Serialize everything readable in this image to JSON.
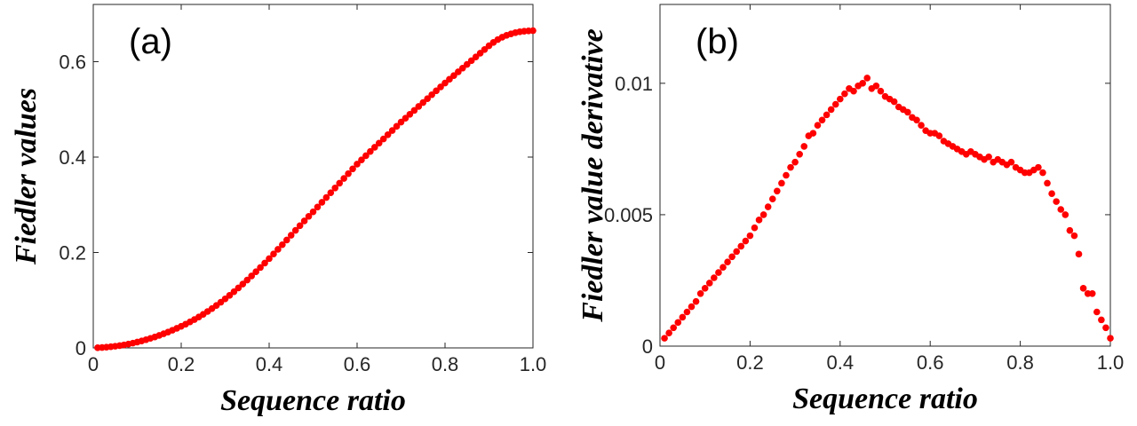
{
  "chart_data": [
    {
      "type": "scatter",
      "annotation": "(a)",
      "xlabel": "Sequence ratio",
      "ylabel": "Fiedler values",
      "color": "#ff0000",
      "xlim": [
        0,
        1
      ],
      "xticks": [
        0,
        0.2,
        0.4,
        0.6,
        0.8,
        {
          "value": 1,
          "label": "1.0"
        }
      ],
      "ylim": [
        0,
        0.72
      ],
      "yticks": [
        0,
        0.2,
        0.4,
        0.6
      ],
      "x": [
        0.01,
        0.02,
        0.03,
        0.04,
        0.05,
        0.06,
        0.07,
        0.08,
        0.09,
        0.1,
        0.11,
        0.12,
        0.13,
        0.14,
        0.15,
        0.16,
        0.17,
        0.18,
        0.19,
        0.2,
        0.21,
        0.22,
        0.23,
        0.24,
        0.25,
        0.26,
        0.27,
        0.28,
        0.29,
        0.3,
        0.31,
        0.32,
        0.33,
        0.34,
        0.35,
        0.36,
        0.37,
        0.38,
        0.39,
        0.4,
        0.41,
        0.42,
        0.43,
        0.44,
        0.45,
        0.46,
        0.47,
        0.48,
        0.49,
        0.5,
        0.51,
        0.52,
        0.53,
        0.54,
        0.55,
        0.56,
        0.57,
        0.58,
        0.59,
        0.6,
        0.61,
        0.62,
        0.63,
        0.64,
        0.65,
        0.66,
        0.67,
        0.68,
        0.69,
        0.7,
        0.71,
        0.72,
        0.73,
        0.74,
        0.75,
        0.76,
        0.77,
        0.78,
        0.79,
        0.8,
        0.81,
        0.82,
        0.83,
        0.84,
        0.85,
        0.86,
        0.87,
        0.88,
        0.89,
        0.9,
        0.91,
        0.92,
        0.93,
        0.94,
        0.95,
        0.96,
        0.97,
        0.98,
        0.99,
        1.0
      ],
      "values": [
        0.0003,
        0.0008,
        0.0015,
        0.0024,
        0.0035,
        0.0048,
        0.0063,
        0.008,
        0.01,
        0.0122,
        0.0146,
        0.0172,
        0.02,
        0.023,
        0.0262,
        0.0296,
        0.0332,
        0.037,
        0.041,
        0.0452,
        0.0497,
        0.0545,
        0.0595,
        0.0648,
        0.0704,
        0.0763,
        0.0825,
        0.089,
        0.0958,
        0.1028,
        0.1101,
        0.1177,
        0.1257,
        0.1338,
        0.1422,
        0.1508,
        0.1596,
        0.1686,
        0.1778,
        0.1872,
        0.1968,
        0.2066,
        0.2163,
        0.2262,
        0.2362,
        0.2464,
        0.2562,
        0.2661,
        0.2758,
        0.2853,
        0.2953,
        0.3053,
        0.3153,
        0.3253,
        0.3353,
        0.3453,
        0.3553,
        0.3653,
        0.3753,
        0.3853,
        0.3941,
        0.4029,
        0.4117,
        0.4205,
        0.4293,
        0.4381,
        0.4469,
        0.4557,
        0.4645,
        0.4733,
        0.4815,
        0.4897,
        0.4979,
        0.5061,
        0.5143,
        0.5225,
        0.5307,
        0.5389,
        0.5471,
        0.5553,
        0.5631,
        0.5709,
        0.5787,
        0.5865,
        0.5943,
        0.6021,
        0.6099,
        0.6177,
        0.6255,
        0.6333,
        0.6403,
        0.6463,
        0.6513,
        0.6553,
        0.6583,
        0.6608,
        0.6626,
        0.6638,
        0.6646,
        0.6651
      ]
    },
    {
      "type": "scatter",
      "annotation": "(b)",
      "xlabel": "Sequence ratio",
      "ylabel": "Fiedler value derivative",
      "color": "#ff0000",
      "xlim": [
        0,
        1
      ],
      "xticks": [
        0,
        0.2,
        0.4,
        0.6,
        0.8,
        {
          "value": 1,
          "label": "1.0"
        }
      ],
      "ylim": [
        0,
        0.013
      ],
      "yticks": [
        0,
        0.005,
        0.01
      ],
      "x": [
        0.01,
        0.02,
        0.03,
        0.04,
        0.05,
        0.06,
        0.07,
        0.08,
        0.09,
        0.1,
        0.11,
        0.12,
        0.13,
        0.14,
        0.15,
        0.16,
        0.17,
        0.18,
        0.19,
        0.2,
        0.21,
        0.22,
        0.23,
        0.24,
        0.25,
        0.26,
        0.27,
        0.28,
        0.29,
        0.3,
        0.31,
        0.32,
        0.33,
        0.34,
        0.35,
        0.36,
        0.37,
        0.38,
        0.39,
        0.4,
        0.41,
        0.42,
        0.43,
        0.44,
        0.45,
        0.46,
        0.47,
        0.48,
        0.49,
        0.5,
        0.51,
        0.52,
        0.53,
        0.54,
        0.55,
        0.56,
        0.57,
        0.58,
        0.59,
        0.6,
        0.61,
        0.62,
        0.63,
        0.64,
        0.65,
        0.66,
        0.67,
        0.68,
        0.69,
        0.7,
        0.71,
        0.72,
        0.73,
        0.74,
        0.75,
        0.76,
        0.77,
        0.78,
        0.79,
        0.8,
        0.81,
        0.82,
        0.83,
        0.84,
        0.85,
        0.86,
        0.87,
        0.88,
        0.89,
        0.9,
        0.91,
        0.92,
        0.93,
        0.94,
        0.95,
        0.96,
        0.97,
        0.98,
        0.99,
        1.0
      ],
      "values": [
        0.0003,
        0.0005,
        0.0007,
        0.0009,
        0.0011,
        0.0013,
        0.0015,
        0.0017,
        0.002,
        0.0022,
        0.0024,
        0.0026,
        0.0028,
        0.003,
        0.0032,
        0.0034,
        0.0036,
        0.0038,
        0.004,
        0.0042,
        0.0045,
        0.0048,
        0.005,
        0.0053,
        0.0056,
        0.0059,
        0.0062,
        0.0065,
        0.0068,
        0.007,
        0.0073,
        0.0076,
        0.008,
        0.0081,
        0.0084,
        0.0086,
        0.0088,
        0.009,
        0.0092,
        0.0094,
        0.0096,
        0.0098,
        0.0097,
        0.0099,
        0.01,
        0.0102,
        0.0098,
        0.0099,
        0.0097,
        0.0095,
        0.0094,
        0.0093,
        0.0091,
        0.009,
        0.0089,
        0.0087,
        0.0086,
        0.0084,
        0.0082,
        0.0081,
        0.0081,
        0.008,
        0.0078,
        0.0077,
        0.0076,
        0.0075,
        0.0074,
        0.0073,
        0.0074,
        0.0073,
        0.0072,
        0.0071,
        0.0072,
        0.007,
        0.0071,
        0.007,
        0.0069,
        0.007,
        0.0068,
        0.0067,
        0.0066,
        0.0066,
        0.0067,
        0.0068,
        0.0066,
        0.0062,
        0.0058,
        0.0055,
        0.0052,
        0.005,
        0.0044,
        0.0042,
        0.0035,
        0.0022,
        0.002,
        0.002,
        0.0013,
        0.001,
        0.0007,
        0.0003
      ]
    }
  ]
}
